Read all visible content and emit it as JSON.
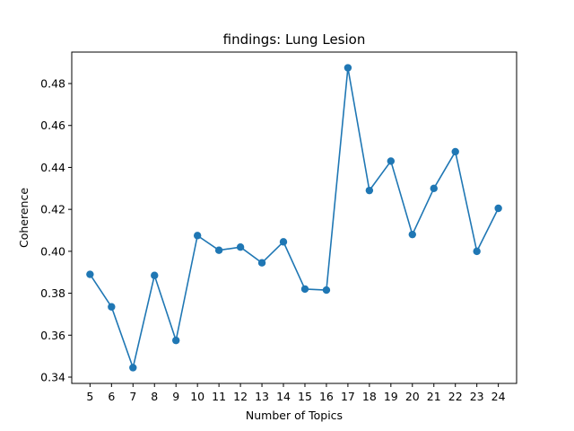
{
  "chart_data": {
    "type": "line",
    "title": "findings: Lung Lesion",
    "xlabel": "Number of Topics",
    "ylabel": "Coherence",
    "x": [
      5,
      6,
      7,
      8,
      9,
      10,
      11,
      12,
      13,
      14,
      15,
      16,
      17,
      18,
      19,
      20,
      21,
      22,
      23,
      24
    ],
    "series": [
      {
        "values": [
          0.389,
          0.3735,
          0.3445,
          0.3885,
          0.3575,
          0.4075,
          0.4005,
          0.402,
          0.3945,
          0.4045,
          0.382,
          0.3815,
          0.4875,
          0.429,
          0.443,
          0.408,
          0.43,
          0.4475,
          0.4,
          0.4205
        ],
        "color": "#1f77b4"
      }
    ],
    "xlim": [
      4.15,
      24.85
    ],
    "ylim": [
      0.337,
      0.495
    ],
    "yticks": [
      0.34,
      0.36,
      0.38,
      0.4,
      0.42,
      0.44,
      0.46,
      0.48
    ],
    "ytick_labels": [
      "0.34",
      "0.36",
      "0.38",
      "0.40",
      "0.42",
      "0.44",
      "0.46",
      "0.48"
    ],
    "grid": false,
    "legend": "none",
    "marker": "circle"
  }
}
